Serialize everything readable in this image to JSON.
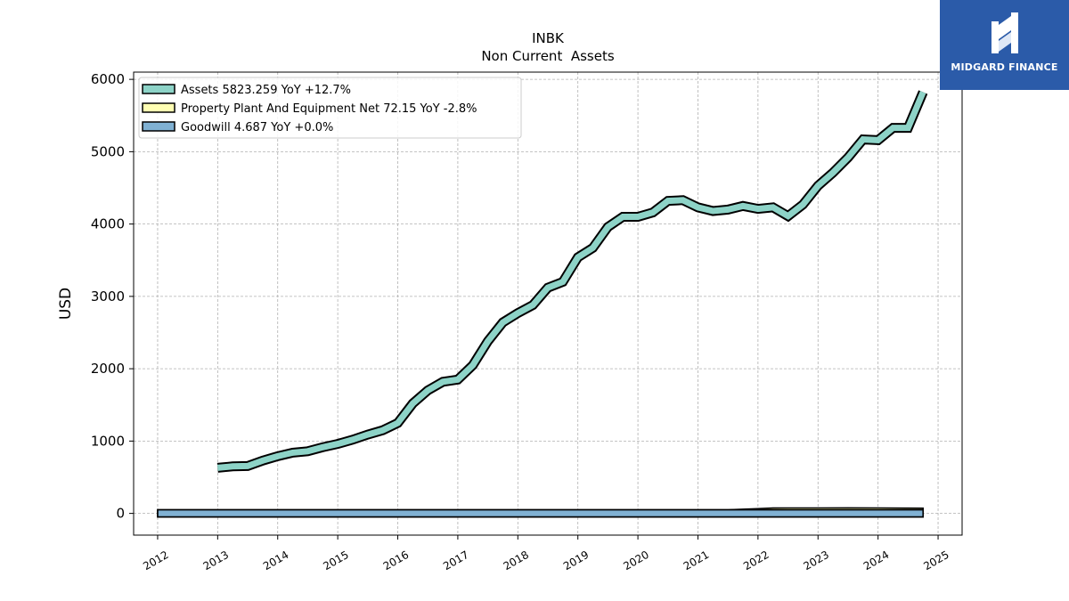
{
  "brand": {
    "name": "MIDGARD FINANCE",
    "color": "#2b5ba9"
  },
  "chart_data": {
    "type": "area",
    "title": "INBK",
    "subtitle": "Non Current  Assets",
    "ylabel": "USD",
    "xlabel": "",
    "ylim": [
      -300,
      6100
    ],
    "xlim": [
      2011.6,
      2025.4
    ],
    "yticks": [
      0,
      1000,
      2000,
      3000,
      4000,
      5000,
      6000
    ],
    "xticks": [
      "2012",
      "2013",
      "2014",
      "2015",
      "2016",
      "2017",
      "2018",
      "2019",
      "2020",
      "2021",
      "2022",
      "2023",
      "2024",
      "2025"
    ],
    "grid": true,
    "legend_position": "top-left",
    "series": [
      {
        "name": "Assets  5823.259 YoY +12.7%",
        "color": "#8dd3c7",
        "x": [
          2013.0,
          2013.25,
          2013.5,
          2013.75,
          2014.0,
          2014.25,
          2014.5,
          2014.75,
          2015.0,
          2015.25,
          2015.5,
          2015.75,
          2016.0,
          2016.25,
          2016.5,
          2016.75,
          2017.0,
          2017.25,
          2017.5,
          2017.75,
          2018.0,
          2018.25,
          2018.5,
          2018.75,
          2019.0,
          2019.25,
          2019.5,
          2019.75,
          2020.0,
          2020.25,
          2020.5,
          2020.75,
          2021.0,
          2021.25,
          2021.5,
          2021.75,
          2022.0,
          2022.25,
          2022.5,
          2022.75,
          2023.0,
          2023.25,
          2023.5,
          2023.75,
          2024.0,
          2024.25,
          2024.5,
          2024.75
        ],
        "values": [
          630,
          650,
          655,
          730,
          790,
          840,
          860,
          915,
          960,
          1020,
          1090,
          1150,
          1250,
          1520,
          1700,
          1820,
          1850,
          2050,
          2380,
          2640,
          2770,
          2880,
          3120,
          3200,
          3540,
          3670,
          3960,
          4100,
          4100,
          4160,
          4320,
          4330,
          4230,
          4180,
          4200,
          4250,
          4210,
          4230,
          4110,
          4270,
          4530,
          4710,
          4920,
          5170,
          5160,
          5330,
          5330,
          5823
        ]
      },
      {
        "name": "Property Plant And Equipment Net  72.15 YoY -2.8%",
        "color": "#ffffb3",
        "x": [
          2012.0,
          2013.0,
          2014.0,
          2015.0,
          2016.0,
          2017.0,
          2018.0,
          2019.0,
          2020.0,
          2020.5,
          2021.0,
          2021.5,
          2022.0,
          2022.25,
          2022.5,
          2023.0,
          2023.5,
          2024.0,
          2024.5,
          2024.75
        ],
        "values": [
          8,
          10,
          12,
          13,
          15,
          16,
          17,
          18,
          20,
          28,
          40,
          50,
          65,
          74,
          75,
          76,
          77,
          75,
          73,
          72.15
        ]
      },
      {
        "name": "Goodwill  4.687 YoY +0.0%",
        "color": "#80b1d3",
        "x": [
          2012.0,
          2024.75
        ],
        "values": [
          4.687,
          4.687
        ]
      }
    ]
  }
}
